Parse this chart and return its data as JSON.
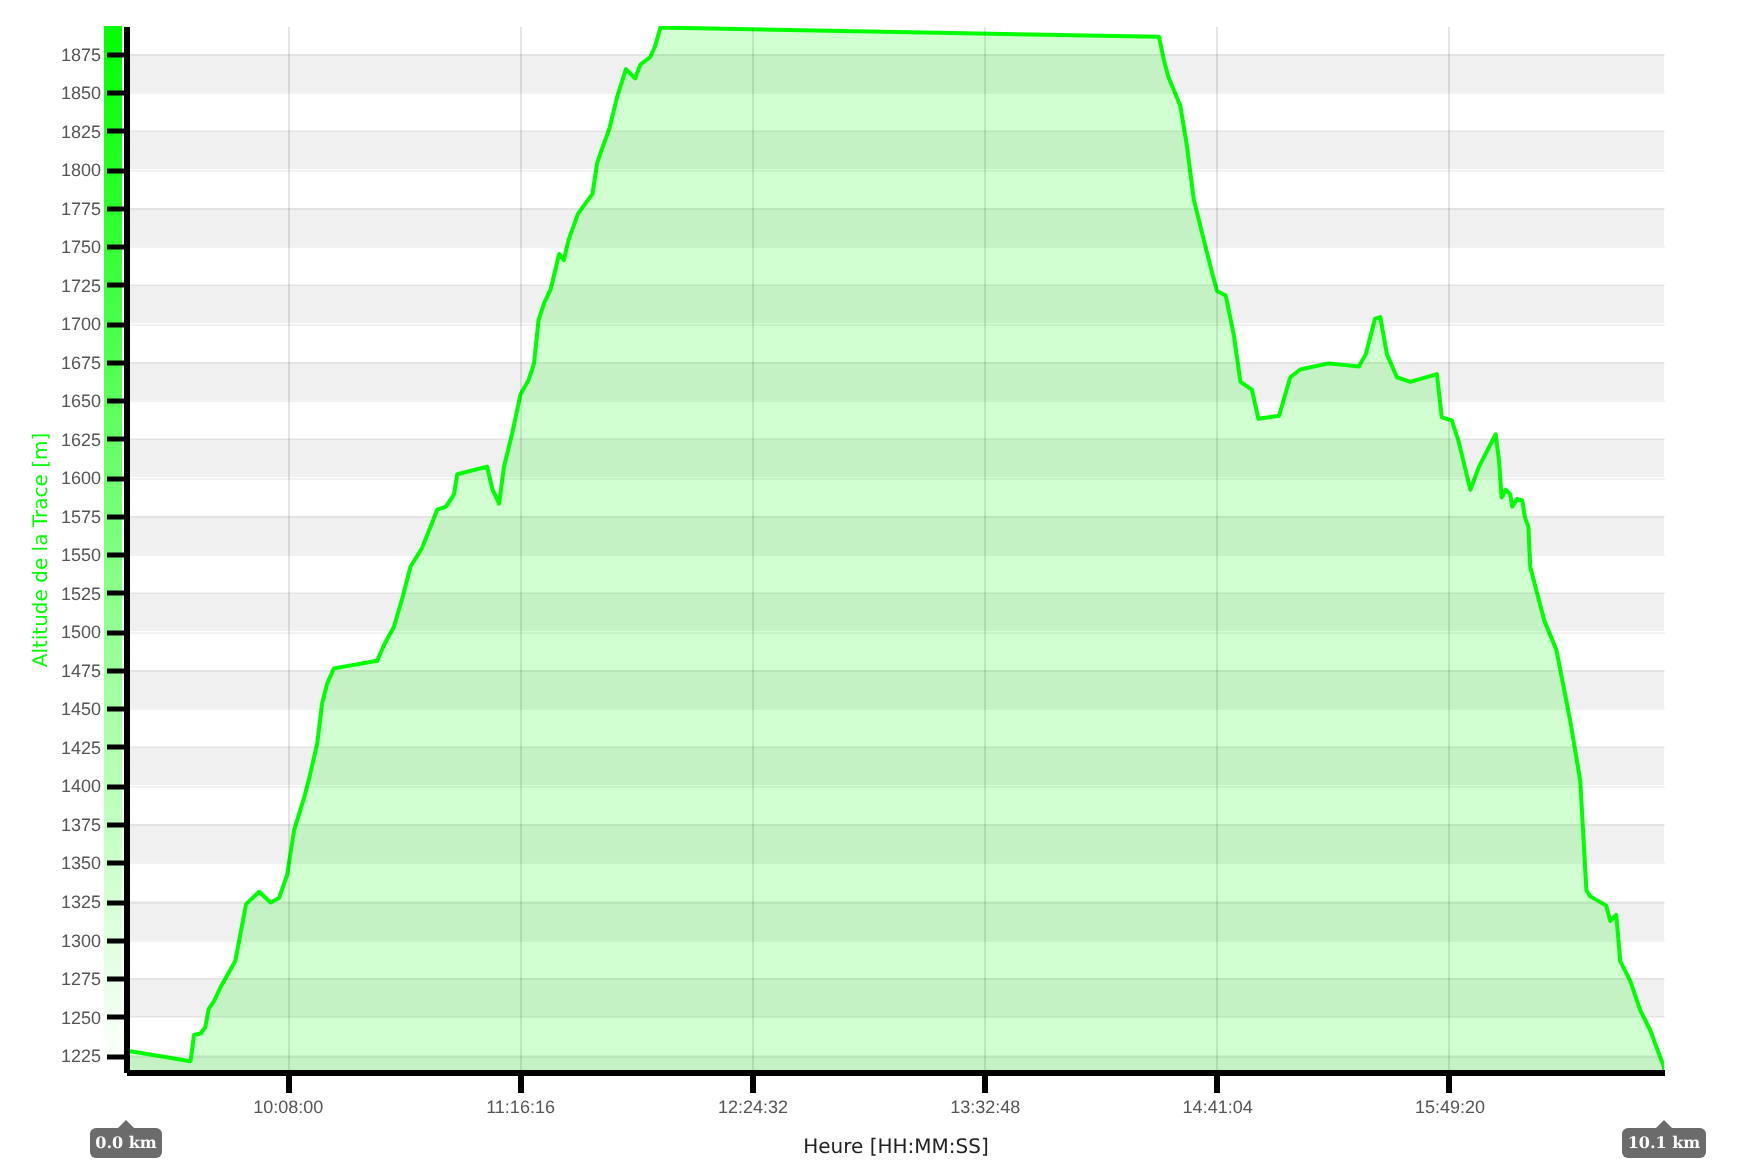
{
  "chart_data": {
    "type": "area",
    "xlabel": "Heure [HH:MM:SS]",
    "ylabel": "Altitude de la Trace [m]",
    "x": [
      9.344,
      9.66,
      9.677,
      9.709,
      9.732,
      9.749,
      9.775,
      9.807,
      9.879,
      9.932,
      9.996,
      10.052,
      10.094,
      10.133,
      10.167,
      10.216,
      10.238,
      10.28,
      10.304,
      10.329,
      10.362,
      10.574,
      10.607,
      10.656,
      10.698,
      10.737,
      10.793,
      10.835,
      10.868,
      10.911,
      10.95,
      10.966,
      11.112,
      11.139,
      11.171,
      11.195,
      11.234,
      11.276,
      11.315,
      11.342,
      11.364,
      11.391,
      11.423,
      11.465,
      11.488,
      11.511,
      11.557,
      11.628,
      11.651,
      11.674,
      11.71,
      11.749,
      11.792,
      11.837,
      11.863,
      11.912,
      11.935,
      11.961,
      14.402,
      14.426,
      14.448,
      14.507,
      14.539,
      14.573,
      14.605,
      14.654,
      14.686,
      14.729,
      14.768,
      14.801,
      14.857,
      14.889,
      14.99,
      15.045,
      15.094,
      15.232,
      15.381,
      15.415,
      15.46,
      15.486,
      15.518,
      15.567,
      15.633,
      15.763,
      15.787,
      15.836,
      15.868,
      15.927,
      15.969,
      16.051,
      16.067,
      16.08,
      16.1,
      16.122,
      16.132,
      16.155,
      16.181,
      16.194,
      16.211,
      16.22,
      16.263,
      16.289,
      16.348,
      16.416,
      16.465,
      16.495,
      16.514,
      16.592,
      16.612,
      16.641,
      16.661,
      16.71,
      16.759,
      16.808,
      16.875
    ],
    "series": [
      {
        "color": "#00ff00",
        "values": [
          1228,
          1221,
          1238,
          1239,
          1243,
          1255,
          1260,
          1269,
          1286,
          1323,
          1331,
          1324,
          1327,
          1342,
          1371,
          1392,
          1403,
          1427,
          1453,
          1466,
          1476,
          1481,
          1491,
          1503,
          1522,
          1542,
          1554,
          1568,
          1579,
          1581,
          1589,
          1602,
          1607,
          1592,
          1583,
          1607,
          1628,
          1654,
          1663,
          1674,
          1702,
          1713,
          1722,
          1745,
          1741,
          1754,
          1771,
          1784,
          1804,
          1813,
          1826,
          1847,
          1865,
          1859,
          1868,
          1873,
          1880,
          1892,
          1886,
          1871,
          1860,
          1841,
          1815,
          1780,
          1763,
          1737,
          1721,
          1718,
          1693,
          1662,
          1657,
          1638,
          1640,
          1665,
          1670,
          1674,
          1672,
          1680,
          1703,
          1704,
          1680,
          1665,
          1662,
          1667,
          1639,
          1637,
          1624,
          1592,
          1607,
          1628,
          1611,
          1587,
          1592,
          1589,
          1581,
          1586,
          1585,
          1574,
          1568,
          1542,
          1520,
          1507,
          1488,
          1442,
          1403,
          1332,
          1328,
          1322,
          1312,
          1316,
          1286,
          1273,
          1254,
          1241,
          1217
        ]
      }
    ],
    "xlim": [
      9.344,
      16.875
    ],
    "xticks": [
      {
        "value": 10.133333,
        "label": "10:08:00"
      },
      {
        "value": 11.271111,
        "label": "11:16:16"
      },
      {
        "value": 12.408889,
        "label": "12:24:32"
      },
      {
        "value": 13.546667,
        "label": "13:32:48"
      },
      {
        "value": 14.684444,
        "label": "14:41:04"
      },
      {
        "value": 15.822222,
        "label": "15:49:20"
      }
    ],
    "ylim": [
      1214,
      1893
    ],
    "yticks": [
      1225,
      1250,
      1275,
      1300,
      1325,
      1350,
      1375,
      1400,
      1425,
      1450,
      1475,
      1500,
      1525,
      1550,
      1575,
      1600,
      1625,
      1650,
      1675,
      1700,
      1725,
      1750,
      1775,
      1800,
      1825,
      1850,
      1875
    ],
    "grid": true,
    "annotations": [
      "0.0 km",
      "10.1 km"
    ]
  }
}
